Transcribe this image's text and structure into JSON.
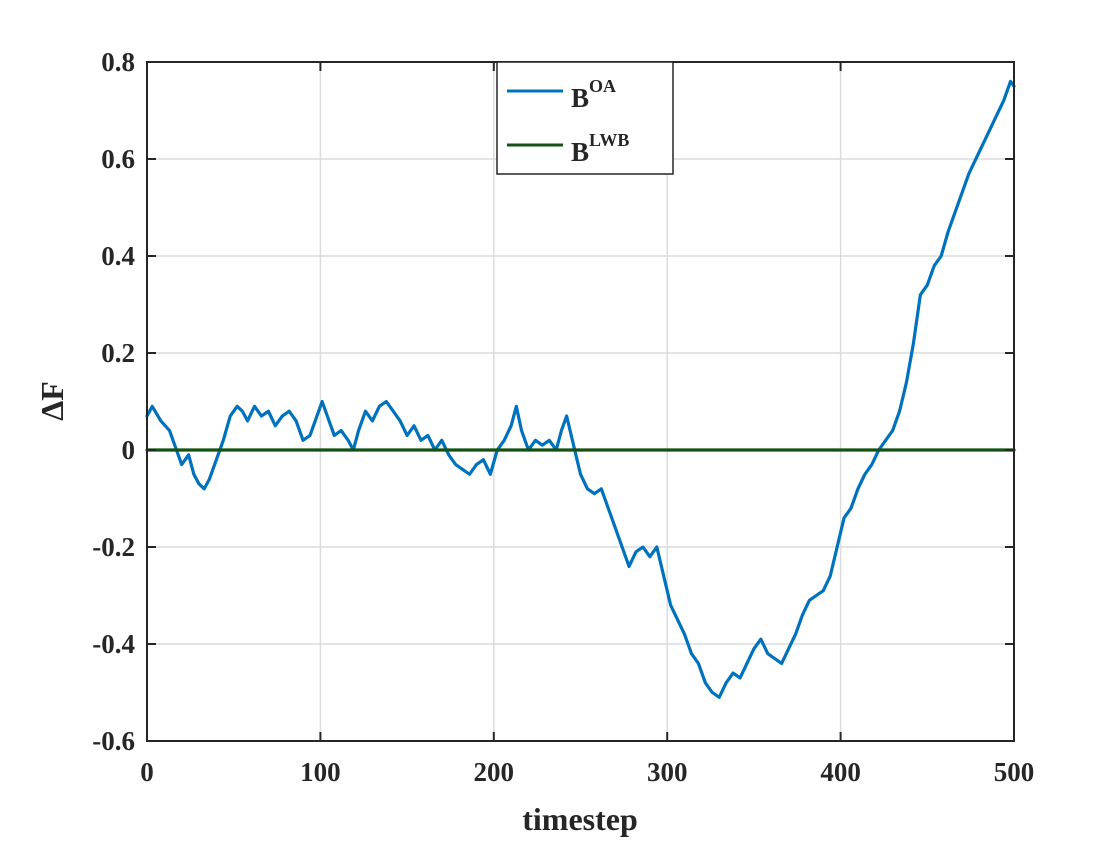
{
  "chart_data": {
    "type": "line",
    "xlabel": "timestep",
    "ylabel": "ΔF",
    "xlim": [
      0,
      500
    ],
    "ylim": [
      -0.6,
      0.8
    ],
    "xticks": [
      0,
      100,
      200,
      300,
      400,
      500
    ],
    "yticks": [
      -0.6,
      -0.4,
      -0.2,
      0,
      0.2,
      0.4,
      0.6,
      0.8
    ],
    "xtick_labels": [
      "0",
      "100",
      "200",
      "300",
      "400",
      "500"
    ],
    "ytick_labels": [
      "-0.6",
      "-0.4",
      "-0.2",
      "0",
      "0.2",
      "0.4",
      "0.6",
      "0.8"
    ],
    "grid": true,
    "legend_position": "top-center",
    "series": [
      {
        "name_base": "B",
        "name_sup": "OA",
        "color": "#0072BD",
        "x": [
          0,
          3,
          8,
          13,
          17,
          20,
          24,
          27,
          30,
          33,
          36,
          40,
          44,
          48,
          52,
          55,
          58,
          62,
          66,
          70,
          74,
          78,
          82,
          86,
          90,
          94,
          98,
          101,
          105,
          108,
          112,
          116,
          119,
          122,
          126,
          130,
          134,
          138,
          142,
          146,
          150,
          154,
          158,
          162,
          166,
          170,
          174,
          178,
          182,
          186,
          190,
          194,
          198,
          202,
          206,
          210,
          213,
          216,
          220,
          224,
          228,
          232,
          236,
          239,
          242,
          246,
          250,
          254,
          258,
          262,
          266,
          270,
          274,
          278,
          282,
          286,
          290,
          294,
          298,
          302,
          306,
          310,
          314,
          318,
          322,
          326,
          330,
          334,
          338,
          342,
          346,
          350,
          354,
          358,
          362,
          366,
          370,
          374,
          378,
          382,
          386,
          390,
          394,
          398,
          402,
          406,
          410,
          414,
          418,
          422,
          426,
          430,
          434,
          438,
          442,
          446,
          450,
          454,
          458,
          462,
          466,
          470,
          474,
          478,
          482,
          486,
          490,
          494,
          498,
          500
        ],
        "y": [
          0.07,
          0.09,
          0.06,
          0.04,
          0.0,
          -0.03,
          -0.01,
          -0.05,
          -0.07,
          -0.08,
          -0.06,
          -0.02,
          0.02,
          0.07,
          0.09,
          0.08,
          0.06,
          0.09,
          0.07,
          0.08,
          0.05,
          0.07,
          0.08,
          0.06,
          0.02,
          0.03,
          0.07,
          0.1,
          0.06,
          0.03,
          0.04,
          0.02,
          0.0,
          0.04,
          0.08,
          0.06,
          0.09,
          0.1,
          0.08,
          0.06,
          0.03,
          0.05,
          0.02,
          0.03,
          0.0,
          0.02,
          -0.01,
          -0.03,
          -0.04,
          -0.05,
          -0.03,
          -0.02,
          -0.05,
          0.0,
          0.02,
          0.05,
          0.09,
          0.04,
          0.0,
          0.02,
          0.01,
          0.02,
          0.0,
          0.04,
          0.07,
          0.01,
          -0.05,
          -0.08,
          -0.09,
          -0.08,
          -0.12,
          -0.16,
          -0.2,
          -0.24,
          -0.21,
          -0.2,
          -0.22,
          -0.2,
          -0.26,
          -0.32,
          -0.35,
          -0.38,
          -0.42,
          -0.44,
          -0.48,
          -0.5,
          -0.51,
          -0.48,
          -0.46,
          -0.47,
          -0.44,
          -0.41,
          -0.39,
          -0.42,
          -0.43,
          -0.44,
          -0.41,
          -0.38,
          -0.34,
          -0.31,
          -0.3,
          -0.29,
          -0.26,
          -0.2,
          -0.14,
          -0.12,
          -0.08,
          -0.05,
          -0.03,
          0.0,
          0.02,
          0.04,
          0.08,
          0.14,
          0.22,
          0.32,
          0.34,
          0.38,
          0.4,
          0.45,
          0.49,
          0.53,
          0.57,
          0.6,
          0.63,
          0.66,
          0.69,
          0.72,
          0.76,
          0.75
        ]
      },
      {
        "name_base": "B",
        "name_sup": "LWB",
        "color": "#145214",
        "x": [
          0,
          500
        ],
        "y": [
          0,
          0
        ]
      }
    ]
  }
}
